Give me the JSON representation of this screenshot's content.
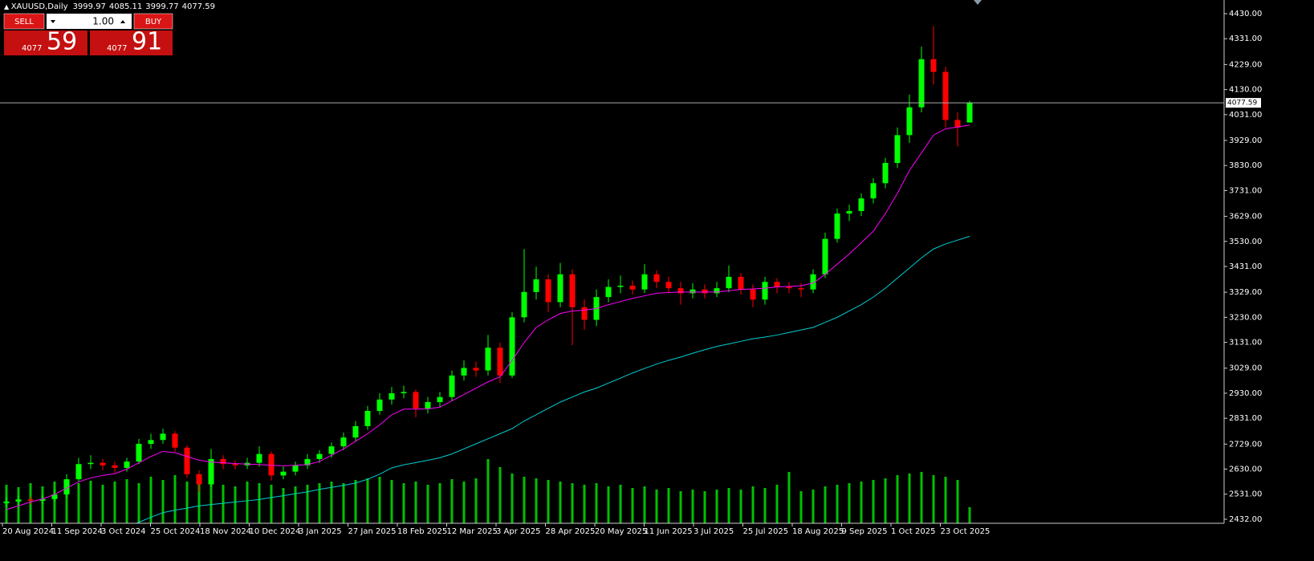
{
  "header": {
    "symbol": "XAUUSD,Daily",
    "ohlc": [
      3999.97,
      4085.11,
      3999.77,
      4077.59
    ]
  },
  "trade_panel": {
    "sell": "SELL",
    "buy": "BUY",
    "lot": "1.00",
    "sell_big": "4077",
    "sell_small": "59",
    "buy_big": "4077",
    "buy_small": "91"
  },
  "chart_data": {
    "type": "candlestick",
    "open": [
      2495,
      2502,
      2510,
      2505,
      2512,
      2530,
      2590,
      2650,
      2655,
      2645,
      2635,
      2660,
      2730,
      2745,
      2770,
      2715,
      2610,
      2570,
      2670,
      2650,
      2645,
      2655,
      2690,
      2605,
      2620,
      2645,
      2670,
      2690,
      2720,
      2755,
      2800,
      2860,
      2905,
      2930,
      2935,
      2870,
      2895,
      2915,
      3000,
      3030,
      3020,
      3110,
      3000,
      3230,
      3330,
      3380,
      3290,
      3400,
      3270,
      3220,
      3310,
      3350,
      3355,
      3340,
      3400,
      3370,
      3345,
      3325,
      3340,
      3325,
      3345,
      3390,
      3340,
      3300,
      3370,
      3350,
      3345,
      3340,
      3400,
      3540,
      3640,
      3650,
      3700,
      3760,
      3840,
      3950,
      4060,
      4250,
      4200,
      4010,
      3999.97
    ],
    "high": [
      2520,
      2525,
      2522,
      2527,
      2550,
      2610,
      2675,
      2685,
      2670,
      2660,
      2675,
      2750,
      2770,
      2790,
      2780,
      2725,
      2625,
      2710,
      2685,
      2665,
      2675,
      2720,
      2700,
      2640,
      2660,
      2690,
      2705,
      2735,
      2775,
      2820,
      2880,
      2930,
      2955,
      2960,
      2945,
      2915,
      2935,
      3020,
      3060,
      3055,
      3160,
      3130,
      3250,
      3500,
      3430,
      3400,
      3445,
      3420,
      3300,
      3340,
      3380,
      3395,
      3375,
      3440,
      3415,
      3390,
      3370,
      3365,
      3360,
      3370,
      3435,
      3405,
      3360,
      3390,
      3385,
      3370,
      3365,
      3420,
      3565,
      3660,
      3675,
      3720,
      3780,
      3860,
      3980,
      4110,
      4300,
      4381,
      4220,
      4040,
      4085.11
    ],
    "low": [
      2480,
      2487,
      2490,
      2493,
      2502,
      2520,
      2580,
      2630,
      2625,
      2615,
      2620,
      2650,
      2710,
      2730,
      2700,
      2595,
      2540,
      2560,
      2630,
      2630,
      2630,
      2640,
      2585,
      2590,
      2605,
      2630,
      2655,
      2675,
      2705,
      2740,
      2785,
      2845,
      2885,
      2910,
      2835,
      2850,
      2875,
      2900,
      2980,
      2995,
      3000,
      2970,
      2990,
      3210,
      3300,
      3250,
      3270,
      3120,
      3180,
      3195,
      3290,
      3325,
      3320,
      3325,
      3345,
      3325,
      3280,
      3305,
      3305,
      3310,
      3330,
      3320,
      3270,
      3280,
      3325,
      3325,
      3310,
      3325,
      3385,
      3525,
      3610,
      3630,
      3680,
      3740,
      3820,
      3920,
      4040,
      4150,
      3980,
      3905,
      3999.77
    ],
    "close": [
      2502,
      2510,
      2505,
      2512,
      2530,
      2590,
      2650,
      2655,
      2645,
      2635,
      2660,
      2730,
      2745,
      2770,
      2715,
      2610,
      2570,
      2670,
      2650,
      2645,
      2655,
      2690,
      2605,
      2620,
      2645,
      2670,
      2690,
      2720,
      2755,
      2800,
      2860,
      2905,
      2930,
      2935,
      2870,
      2895,
      2915,
      3000,
      3030,
      3020,
      3110,
      3000,
      3230,
      3330,
      3380,
      3290,
      3400,
      3270,
      3220,
      3310,
      3350,
      3355,
      3340,
      3400,
      3370,
      3345,
      3325,
      3340,
      3325,
      3345,
      3390,
      3340,
      3300,
      3370,
      3350,
      3345,
      3340,
      3400,
      3540,
      3640,
      3650,
      3700,
      3760,
      3840,
      3950,
      4060,
      4250,
      4200,
      4010,
      3980,
      4077.59
    ],
    "volume": [
      48,
      45,
      50,
      46,
      52,
      55,
      50,
      53,
      48,
      52,
      55,
      50,
      58,
      54,
      60,
      52,
      50,
      55,
      48,
      46,
      52,
      50,
      48,
      44,
      46,
      48,
      50,
      52,
      50,
      54,
      56,
      58,
      54,
      50,
      52,
      48,
      50,
      55,
      52,
      56,
      80,
      70,
      62,
      58,
      56,
      54,
      52,
      50,
      48,
      50,
      46,
      48,
      44,
      46,
      42,
      44,
      40,
      42,
      40,
      42,
      44,
      42,
      46,
      44,
      48,
      64,
      40,
      42,
      46,
      48,
      50,
      52,
      54,
      56,
      60,
      62,
      64,
      60,
      58,
      54,
      20
    ],
    "moving_averages": [
      {
        "color": "#ff00ff",
        "values": [
          2470,
          2485,
          2500,
          2512,
          2530,
          2555,
          2580,
          2595,
          2605,
          2612,
          2630,
          2655,
          2680,
          2700,
          2695,
          2680,
          2665,
          2658,
          2655,
          2652,
          2650,
          2648,
          2645,
          2643,
          2645,
          2648,
          2660,
          2685,
          2710,
          2740,
          2770,
          2805,
          2845,
          2867,
          2867,
          2868,
          2875,
          2900,
          2925,
          2950,
          2975,
          2995,
          3060,
          3130,
          3190,
          3220,
          3245,
          3255,
          3258,
          3265,
          3280,
          3292,
          3305,
          3315,
          3325,
          3328,
          3330,
          3330,
          3330,
          3330,
          3335,
          3340,
          3342,
          3345,
          3350,
          3352,
          3355,
          3365,
          3400,
          3440,
          3480,
          3525,
          3570,
          3640,
          3720,
          3810,
          3880,
          3950,
          3975,
          3982,
          3990
        ]
      },
      {
        "color": "#00ced1",
        "values": [
          null,
          null,
          null,
          null,
          null,
          null,
          null,
          null,
          null,
          null,
          2400,
          2420,
          2440,
          2458,
          2468,
          2476,
          2485,
          2490,
          2495,
          2500,
          2505,
          2510,
          2518,
          2525,
          2533,
          2540,
          2550,
          2558,
          2566,
          2575,
          2590,
          2610,
          2635,
          2647,
          2656,
          2665,
          2675,
          2690,
          2710,
          2730,
          2750,
          2770,
          2790,
          2820,
          2845,
          2870,
          2895,
          2915,
          2935,
          2950,
          2970,
          2990,
          3010,
          3028,
          3045,
          3060,
          3073,
          3088,
          3102,
          3115,
          3125,
          3135,
          3145,
          3152,
          3160,
          3170,
          3180,
          3190,
          3210,
          3230,
          3255,
          3280,
          3310,
          3345,
          3385,
          3425,
          3465,
          3500,
          3520,
          3535,
          3550
        ]
      }
    ],
    "bull_color": "#00ff00",
    "bear_color": "#ff0000",
    "volume_color": "#00c000",
    "ylim": [
      2416,
      4484
    ],
    "yticks": [
      {
        "value": 4430,
        "label": "4430.00"
      },
      {
        "value": 4331,
        "label": "4331.00"
      },
      {
        "value": 4229,
        "label": "4229.00"
      },
      {
        "value": 4130,
        "label": "4130.00"
      },
      {
        "value": 4031,
        "label": "4031.00"
      },
      {
        "value": 3929,
        "label": "3929.00"
      },
      {
        "value": 3830,
        "label": "3830.00"
      },
      {
        "value": 3731,
        "label": "3731.00"
      },
      {
        "value": 3629,
        "label": "3629.00"
      },
      {
        "value": 3530,
        "label": "3530.00"
      },
      {
        "value": 3431,
        "label": "3431.00"
      },
      {
        "value": 3329,
        "label": "3329.00"
      },
      {
        "value": 3230,
        "label": "3230.00"
      },
      {
        "value": 3131,
        "label": "3131.00"
      },
      {
        "value": 3029,
        "label": "3029.00"
      },
      {
        "value": 2930,
        "label": "2930.00"
      },
      {
        "value": 2831,
        "label": "2831.00"
      },
      {
        "value": 2729,
        "label": "2729.00"
      },
      {
        "value": 2630,
        "label": "2630.00"
      },
      {
        "value": 2531,
        "label": "2531.00"
      },
      {
        "value": 2432,
        "label": "2432.00"
      }
    ],
    "last_price": 4077.59,
    "xlabels": [
      "20 Aug 2024",
      "11 Sep 2024",
      "3 Oct 2024",
      "25 Oct 2024",
      "18 Nov 2024",
      "10 Dec 2024",
      "3 Jan 2025",
      "27 Jan 2025",
      "18 Feb 2025",
      "12 Mar 2025",
      "3 Apr 2025",
      "28 Apr 2025",
      "20 May 2025",
      "11 Jun 2025",
      "3 Jul 2025",
      "25 Jul 2025",
      "18 Aug 2025",
      "9 Sep 2025",
      "1 Oct 2025",
      "23 Oct 2025"
    ]
  }
}
